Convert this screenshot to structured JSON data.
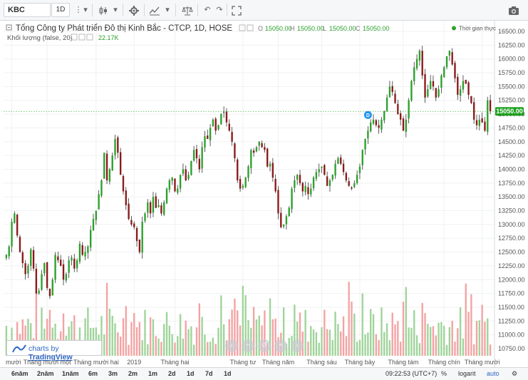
{
  "toolbar": {
    "symbol": "KBC",
    "interval": "1D",
    "icons": [
      "more-vert-icon",
      "dropdown-icon",
      "candles-icon",
      "dropdown-icon",
      "gear-icon",
      "indicators-icon",
      "dropdown-icon",
      "compare-icon",
      "undo-icon",
      "redo-icon",
      "fullscreen-icon",
      "camera-icon"
    ]
  },
  "legend": {
    "title": "Tổng Công ty Phát triển Đô thị Kinh Bắc - CTCP, 1D, HOSE",
    "o_label": "O",
    "o": "15050.00",
    "h_label": "H",
    "h": "15050.00",
    "l_label": "L",
    "l": "15050.00",
    "c_label": "C",
    "c": "15050.00",
    "volume_label": "Khối lượng (false, 20)",
    "volume_value": "22.17K",
    "realtime": "Thời gian thực"
  },
  "price_badge": "15050.00",
  "event_marker": "D",
  "tv_badge": {
    "prefix": "charts by",
    "brand": "TradingView"
  },
  "bottom": {
    "ranges": [
      "6năm",
      "2năm",
      "1năm",
      "6m",
      "3m",
      "2m",
      "1m",
      "2d",
      "1d",
      "7d",
      "1d"
    ],
    "time": "09:22:53 (UTC+7)",
    "percent": "%",
    "log": "logarit",
    "auto": "auto"
  },
  "colors": {
    "up": "#2ca02c",
    "down": "#8b1a1a",
    "wick": "#333333",
    "vol_up": "#9fd49a",
    "vol_down": "#f3a3a3",
    "last_line": "#46b446",
    "badge": "#1fa01f"
  },
  "chart_data": {
    "type": "candlestick",
    "title": "Tổng Công ty Phát triển Đô thị Kinh Bắc - CTCP, 1D, HOSE",
    "y_ticks": [
      10750,
      11000,
      11250,
      11500,
      11750,
      12000,
      12250,
      12500,
      12750,
      13000,
      13250,
      13500,
      13750,
      14000,
      14250,
      14500,
      14750,
      15000,
      15250,
      15500,
      15750,
      16000,
      16250,
      16500
    ],
    "ylim": [
      10600,
      16600
    ],
    "last_price": 15050,
    "x_labels": [
      {
        "i": 2,
        "label": "mười"
      },
      {
        "i": 15,
        "label": "Tháng mười một"
      },
      {
        "i": 33,
        "label": "Tháng mười hai"
      },
      {
        "i": 47,
        "label": "2019"
      },
      {
        "i": 62,
        "label": "Tháng hai"
      },
      {
        "i": 87,
        "label": "Tháng tư"
      },
      {
        "i": 100,
        "label": "Tháng năm"
      },
      {
        "i": 116,
        "label": "Tháng sáu"
      },
      {
        "i": 130,
        "label": "Tháng bảy"
      },
      {
        "i": 146,
        "label": "Tháng tám"
      },
      {
        "i": 161,
        "label": "Tháng chín"
      },
      {
        "i": 175,
        "label": "Tháng mười"
      }
    ],
    "close": [
      12450,
      12600,
      13050,
      13200,
      12800,
      12500,
      12300,
      12100,
      12250,
      12550,
      12200,
      11750,
      11800,
      12100,
      12300,
      11850,
      11700,
      12000,
      12450,
      12350,
      12250,
      12000,
      12100,
      12350,
      12400,
      12200,
      12350,
      12650,
      12450,
      12500,
      12600,
      12900,
      13100,
      13250,
      13550,
      13800,
      14300,
      13800,
      14000,
      14250,
      14550,
      14300,
      13900,
      13600,
      13350,
      13100,
      13000,
      12950,
      12700,
      12500,
      13050,
      13200,
      13400,
      13200,
      13500,
      13300,
      13350,
      13200,
      13400,
      13650,
      13800,
      13850,
      13600,
      13650,
      13900,
      14000,
      13800,
      13900,
      14150,
      14350,
      14200,
      14000,
      14400,
      14600,
      14550,
      14750,
      14900,
      14700,
      14800,
      15000,
      15050,
      14850,
      14700,
      14500,
      14200,
      13800,
      13650,
      13700,
      13850,
      14050,
      14350,
      14300,
      14400,
      14500,
      14400,
      14350,
      14050,
      14100,
      13850,
      13600,
      13200,
      12950,
      13000,
      13150,
      13300,
      13650,
      13800,
      13900,
      13750,
      13600,
      13700,
      13550,
      13650,
      13850,
      13950,
      14000,
      14050,
      13900,
      13700,
      13800,
      13900,
      14100,
      14200,
      14100,
      13950,
      13800,
      13700,
      13650,
      13750,
      13900,
      14050,
      14350,
      14550,
      14700,
      14850,
      14900,
      14800,
      14750,
      14900,
      15050,
      15300,
      15500,
      15400,
      15200,
      15000,
      14900,
      14700,
      14900,
      15250,
      15600,
      15850,
      16000,
      16150,
      15700,
      15300,
      15450,
      15600,
      15500,
      15300,
      15450,
      15700,
      15850,
      16050,
      16150,
      15900,
      15650,
      15350,
      15450,
      15600,
      15550,
      15350,
      15200,
      14900,
      14800,
      14900,
      14850,
      14700,
      15250,
      15050
    ]
  }
}
